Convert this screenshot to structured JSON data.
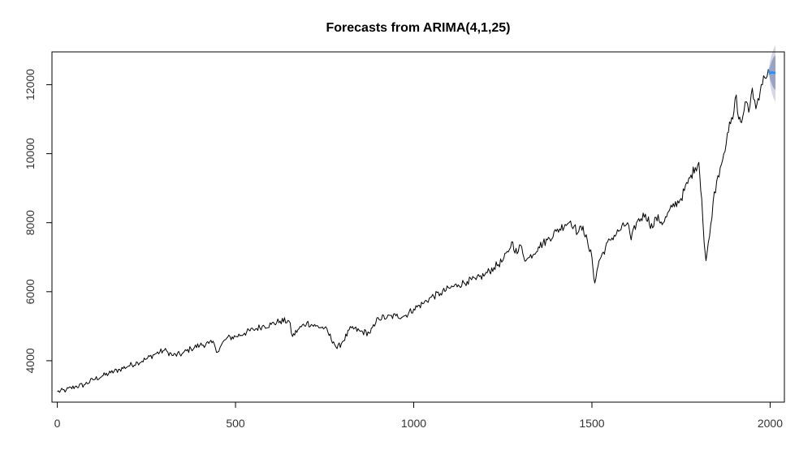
{
  "chart_data": {
    "type": "line",
    "title": "Forecasts from ARIMA(4,1,25)",
    "xlabel": "",
    "ylabel": "",
    "xlim": [
      -15,
      2040
    ],
    "ylim": [
      2800,
      12950
    ],
    "x_ticks": [
      0,
      500,
      1000,
      1500,
      2000
    ],
    "y_ticks": [
      4000,
      6000,
      8000,
      10000,
      12000
    ],
    "grid": false,
    "legend": "none",
    "colors": {
      "series": "#000000",
      "forecast": "#1e90ff",
      "interval_80": "#9aa3c4",
      "interval_95": "#d4d7e6"
    },
    "series": [
      {
        "points": [
          [
            0,
            3100
          ],
          [
            25,
            3150
          ],
          [
            50,
            3250
          ],
          [
            75,
            3300
          ],
          [
            100,
            3450
          ],
          [
            125,
            3550
          ],
          [
            150,
            3650
          ],
          [
            175,
            3750
          ],
          [
            200,
            3850
          ],
          [
            225,
            3950
          ],
          [
            250,
            4050
          ],
          [
            275,
            4200
          ],
          [
            300,
            4300
          ],
          [
            310,
            4250
          ],
          [
            325,
            4150
          ],
          [
            350,
            4200
          ],
          [
            375,
            4350
          ],
          [
            400,
            4450
          ],
          [
            425,
            4500
          ],
          [
            440,
            4500
          ],
          [
            450,
            4250
          ],
          [
            460,
            4450
          ],
          [
            475,
            4650
          ],
          [
            500,
            4700
          ],
          [
            525,
            4800
          ],
          [
            550,
            4900
          ],
          [
            575,
            5000
          ],
          [
            600,
            5050
          ],
          [
            625,
            5150
          ],
          [
            650,
            5150
          ],
          [
            660,
            4700
          ],
          [
            675,
            4900
          ],
          [
            700,
            5100
          ],
          [
            725,
            5000
          ],
          [
            750,
            4950
          ],
          [
            775,
            4550
          ],
          [
            785,
            4350
          ],
          [
            800,
            4550
          ],
          [
            825,
            4950
          ],
          [
            850,
            4850
          ],
          [
            875,
            4800
          ],
          [
            890,
            5000
          ],
          [
            900,
            5250
          ],
          [
            925,
            5250
          ],
          [
            950,
            5300
          ],
          [
            975,
            5300
          ],
          [
            1000,
            5500
          ],
          [
            1025,
            5650
          ],
          [
            1050,
            5850
          ],
          [
            1075,
            5950
          ],
          [
            1100,
            6100
          ],
          [
            1125,
            6200
          ],
          [
            1150,
            6300
          ],
          [
            1175,
            6350
          ],
          [
            1200,
            6500
          ],
          [
            1225,
            6700
          ],
          [
            1250,
            6900
          ],
          [
            1265,
            7150
          ],
          [
            1275,
            7450
          ],
          [
            1290,
            7100
          ],
          [
            1300,
            7350
          ],
          [
            1315,
            6900
          ],
          [
            1325,
            7000
          ],
          [
            1350,
            7300
          ],
          [
            1375,
            7500
          ],
          [
            1400,
            7750
          ],
          [
            1425,
            7950
          ],
          [
            1440,
            8050
          ],
          [
            1450,
            7900
          ],
          [
            1460,
            7700
          ],
          [
            1475,
            7900
          ],
          [
            1490,
            7300
          ],
          [
            1500,
            7000
          ],
          [
            1508,
            6250
          ],
          [
            1520,
            6900
          ],
          [
            1550,
            7500
          ],
          [
            1575,
            7750
          ],
          [
            1600,
            8000
          ],
          [
            1610,
            7500
          ],
          [
            1625,
            8000
          ],
          [
            1650,
            8250
          ],
          [
            1670,
            7850
          ],
          [
            1680,
            8150
          ],
          [
            1700,
            8000
          ],
          [
            1725,
            8450
          ],
          [
            1750,
            8700
          ],
          [
            1775,
            9300
          ],
          [
            1790,
            9600
          ],
          [
            1800,
            9750
          ],
          [
            1808,
            8700
          ],
          [
            1815,
            7400
          ],
          [
            1820,
            6900
          ],
          [
            1830,
            7600
          ],
          [
            1840,
            8600
          ],
          [
            1850,
            9200
          ],
          [
            1860,
            9600
          ],
          [
            1870,
            10000
          ],
          [
            1880,
            10600
          ],
          [
            1895,
            11000
          ],
          [
            1905,
            11700
          ],
          [
            1912,
            11000
          ],
          [
            1920,
            10900
          ],
          [
            1930,
            11500
          ],
          [
            1940,
            11200
          ],
          [
            1950,
            11900
          ],
          [
            1960,
            11300
          ],
          [
            1975,
            12000
          ],
          [
            1985,
            12200
          ],
          [
            1995,
            12450
          ]
        ]
      }
    ],
    "forecast": {
      "x": [
        1996,
        2000,
        2005,
        2010,
        2015
      ],
      "y": [
        12400,
        12330,
        12360,
        12340,
        12350
      ],
      "lo80": [
        12380,
        12150,
        12000,
        11900,
        11850
      ],
      "hi80": [
        12420,
        12550,
        12700,
        12800,
        12850
      ],
      "lo95": [
        12370,
        12000,
        11750,
        11600,
        11500
      ],
      "hi95": [
        12430,
        12700,
        12900,
        13050,
        13150
      ]
    }
  }
}
